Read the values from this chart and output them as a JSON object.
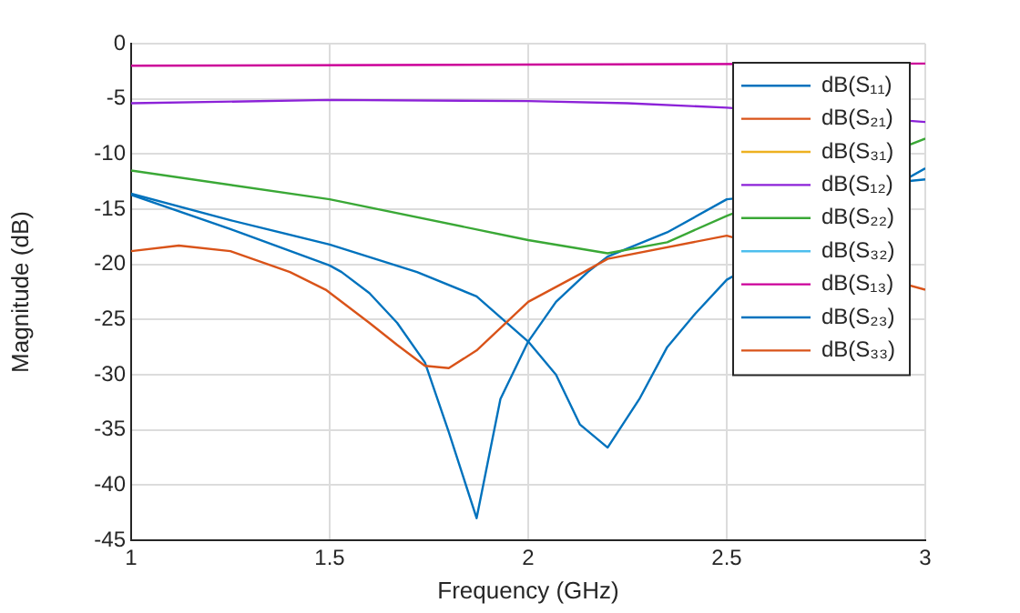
{
  "chart_data": {
    "type": "line",
    "xlabel": "Frequency (GHz)",
    "ylabel": "Magnitude (dB)",
    "xlim": [
      1,
      3
    ],
    "xticks": [
      1,
      1.5,
      2,
      2.5,
      3
    ],
    "ylim": [
      -45,
      0
    ],
    "yticks": [
      -45,
      -40,
      -35,
      -30,
      -25,
      -20,
      -15,
      -10,
      -5,
      0
    ],
    "grid": true,
    "legend": "top right",
    "marker": "none",
    "line_style": "solid",
    "series": [
      {
        "name": "dB(S₁₁)",
        "color": "#0072bd",
        "x": [
          1,
          1.25,
          1.5,
          1.53,
          1.6,
          1.67,
          1.74,
          1.8,
          1.87,
          1.93,
          2.0,
          2.07,
          2.15,
          2.2,
          2.35,
          2.5,
          2.75,
          3
        ],
        "values": [
          -13.7,
          -16.8,
          -20.1,
          -20.7,
          -22.6,
          -25.3,
          -28.9,
          -35.2,
          -43.0,
          -32.2,
          -27.0,
          -23.4,
          -20.7,
          -19.3,
          -17.1,
          -14.1,
          null,
          -12.3
        ]
      },
      {
        "name": "dB(S₂₁)",
        "color": "#d95319"
      },
      {
        "name": "dB(S₃₁)",
        "color": "#edb120"
      },
      {
        "name": "dB(S₁₂)",
        "color": "#8c22d8",
        "x": [
          1,
          1.5,
          2,
          2.25,
          2.5,
          2.75,
          3
        ],
        "values": [
          -5.4,
          -5.1,
          -5.2,
          -5.4,
          -5.8,
          null,
          -7.1
        ]
      },
      {
        "name": "dB(S₂₂)",
        "color": "#3aa836",
        "x": [
          1,
          1.5,
          2,
          2.2,
          2.35,
          2.5,
          2.75,
          3
        ],
        "values": [
          -11.5,
          -14.1,
          -17.8,
          -19.0,
          -18.0,
          -15.6,
          null,
          -8.6
        ]
      },
      {
        "name": "dB(S₃₂)",
        "color": "#4dbeee"
      },
      {
        "name": "dB(S₁₃)",
        "color": "#cc0099",
        "x": [
          1,
          2,
          3
        ],
        "values": [
          -2.0,
          -1.9,
          -1.8
        ]
      },
      {
        "name": "dB(S₂₃)",
        "color": "#0072bd",
        "x": [
          1,
          1.25,
          1.5,
          1.72,
          1.87,
          2.0,
          2.07,
          2.13,
          2.2,
          2.28,
          2.35,
          2.42,
          2.5,
          2.75,
          2.9,
          3
        ],
        "values": [
          -13.6,
          -16.0,
          -18.2,
          -20.7,
          -22.9,
          -27.0,
          -30.0,
          -34.5,
          -36.6,
          -32.2,
          -27.5,
          -24.5,
          -21.4,
          null,
          null,
          -11.3
        ]
      },
      {
        "name": "dB(S₃₃)",
        "color": "#d95319",
        "x": [
          1,
          1.12,
          1.25,
          1.4,
          1.49,
          1.6,
          1.67,
          1.74,
          1.8,
          1.87,
          2.0,
          2.14,
          2.2,
          2.5,
          2.75,
          2.9,
          3
        ],
        "values": [
          -18.8,
          -18.3,
          -18.8,
          -20.7,
          -22.3,
          -25.3,
          -27.3,
          -29.2,
          -29.4,
          -27.8,
          -23.4,
          -20.7,
          -19.5,
          -17.4,
          null,
          null,
          -22.3
        ]
      }
    ]
  }
}
